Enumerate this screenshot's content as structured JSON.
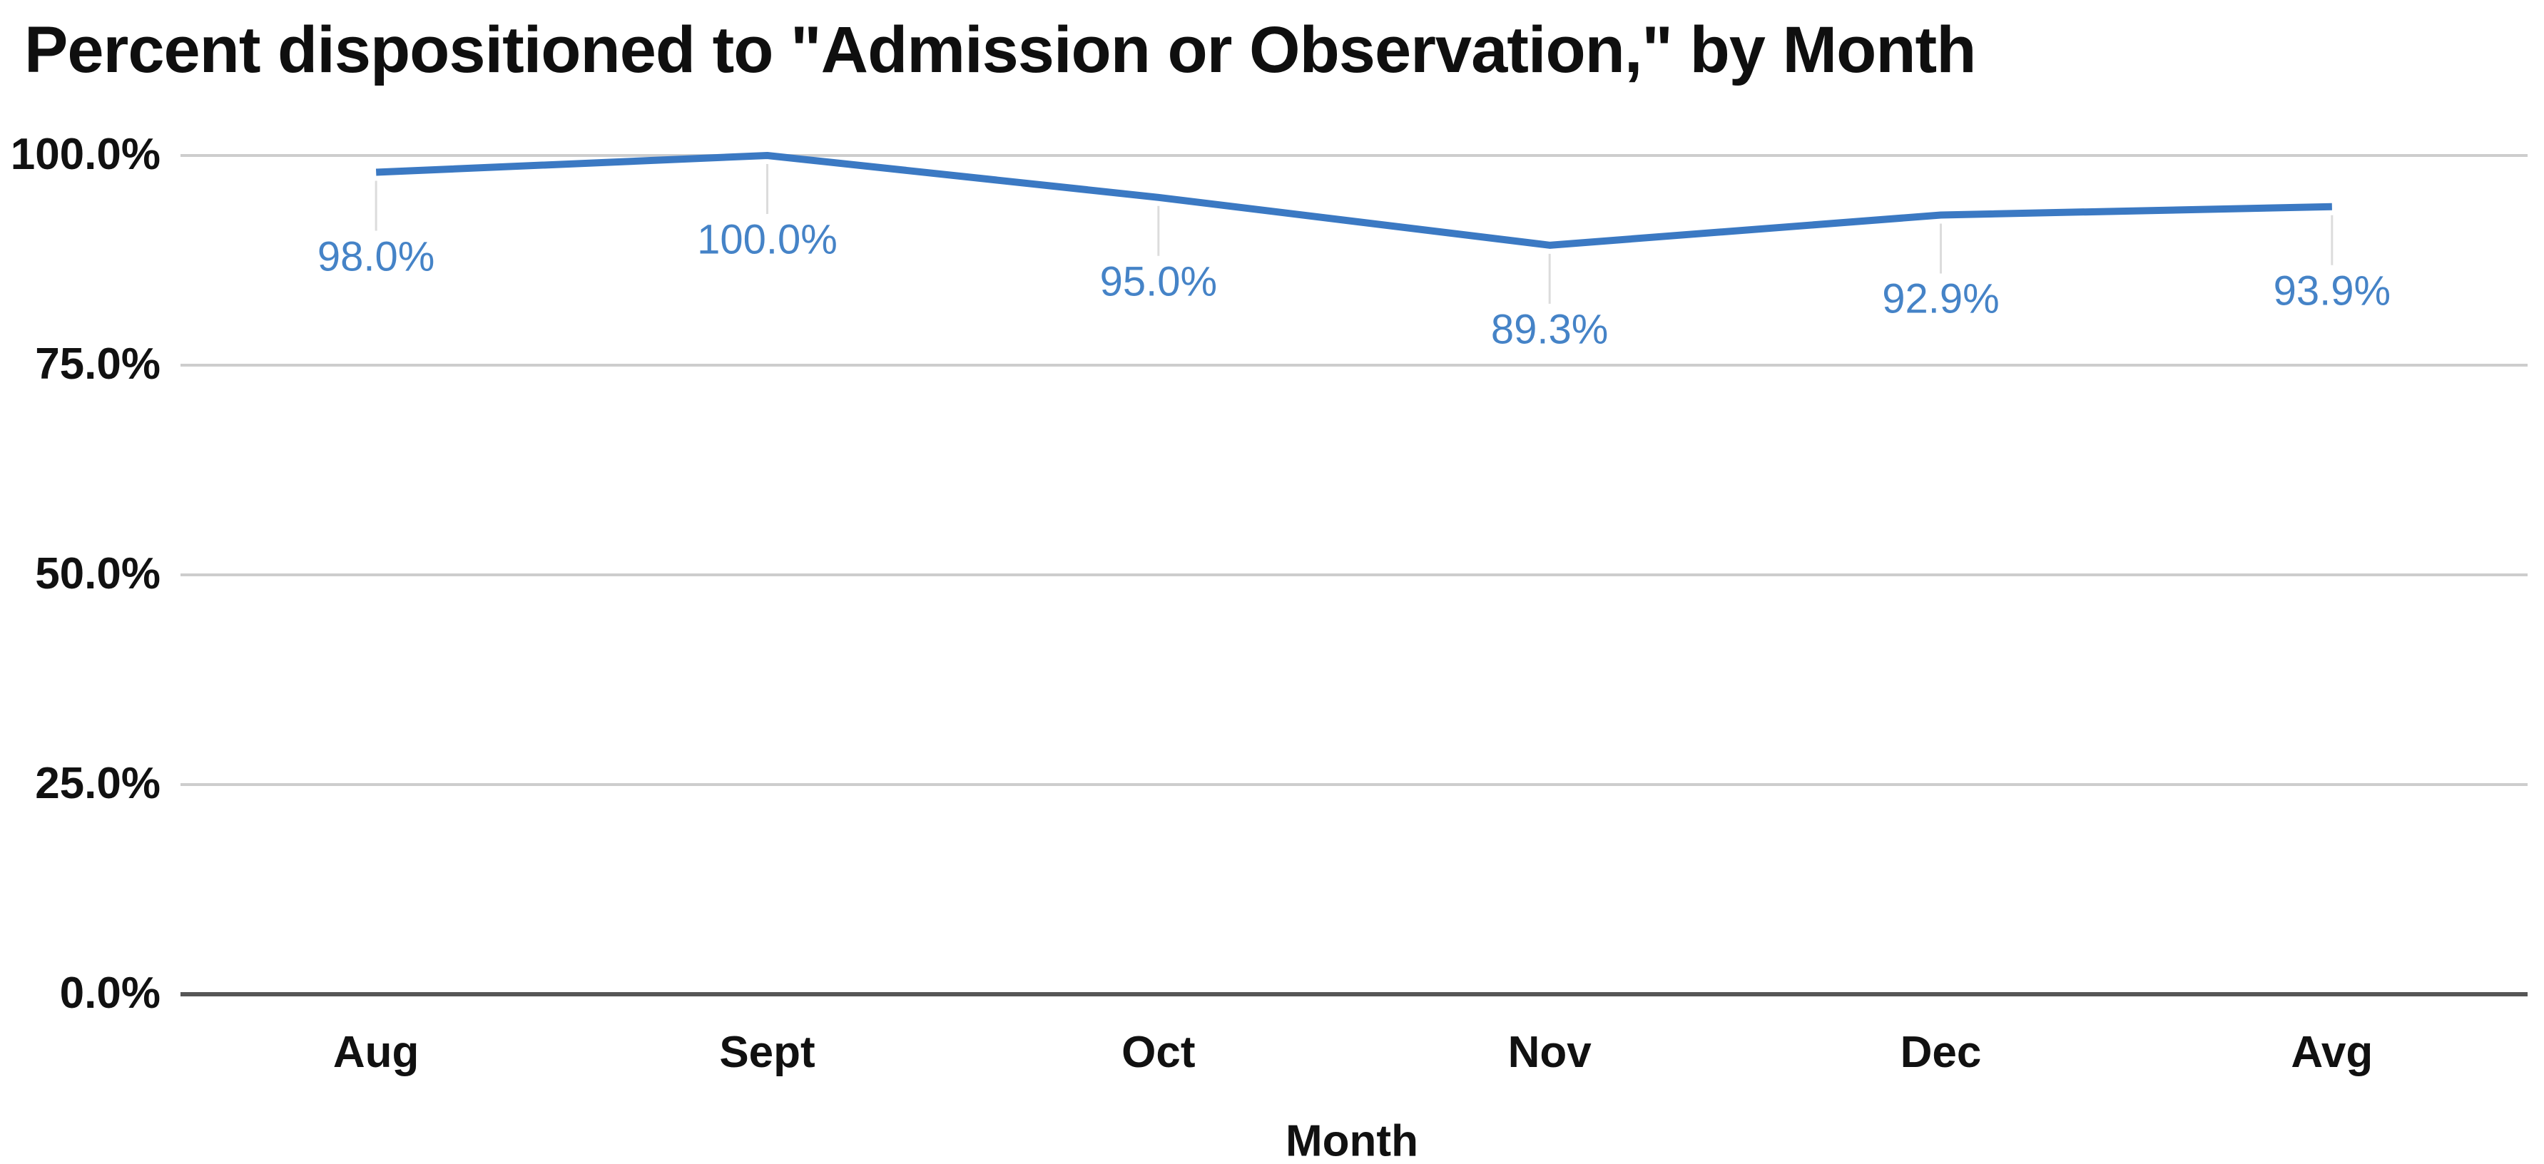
{
  "chart_data": {
    "type": "line",
    "title": "Percent dispositioned to \"Admission or Observation,\" by Month",
    "xlabel": "Month",
    "ylabel": "",
    "categories": [
      "Aug",
      "Sept",
      "Oct",
      "Nov",
      "Dec",
      "Avg"
    ],
    "values": [
      98.0,
      100.0,
      95.0,
      89.3,
      92.9,
      93.9
    ],
    "data_labels": [
      "98.0%",
      "100.0%",
      "95.0%",
      "89.3%",
      "92.9%",
      "93.9%"
    ],
    "series_name": "Percent dispositioned to Admission or Observation",
    "y_ticks": [
      {
        "value": 100,
        "label": "100.0%"
      },
      {
        "value": 75,
        "label": "75.0%"
      },
      {
        "value": 50,
        "label": "50.0%"
      },
      {
        "value": 25,
        "label": "25.0%"
      },
      {
        "value": 0,
        "label": "0.0%"
      }
    ],
    "ylim": [
      0,
      100
    ],
    "grid": "horizontal",
    "legend": "none",
    "colors": {
      "line": "#3b79c3",
      "data_label": "#4583c7",
      "gridline": "#cdcdcd",
      "axis_line": "#565656",
      "leader_line": "#dcdcdc",
      "text": "#111111",
      "background": "#ffffff"
    }
  }
}
